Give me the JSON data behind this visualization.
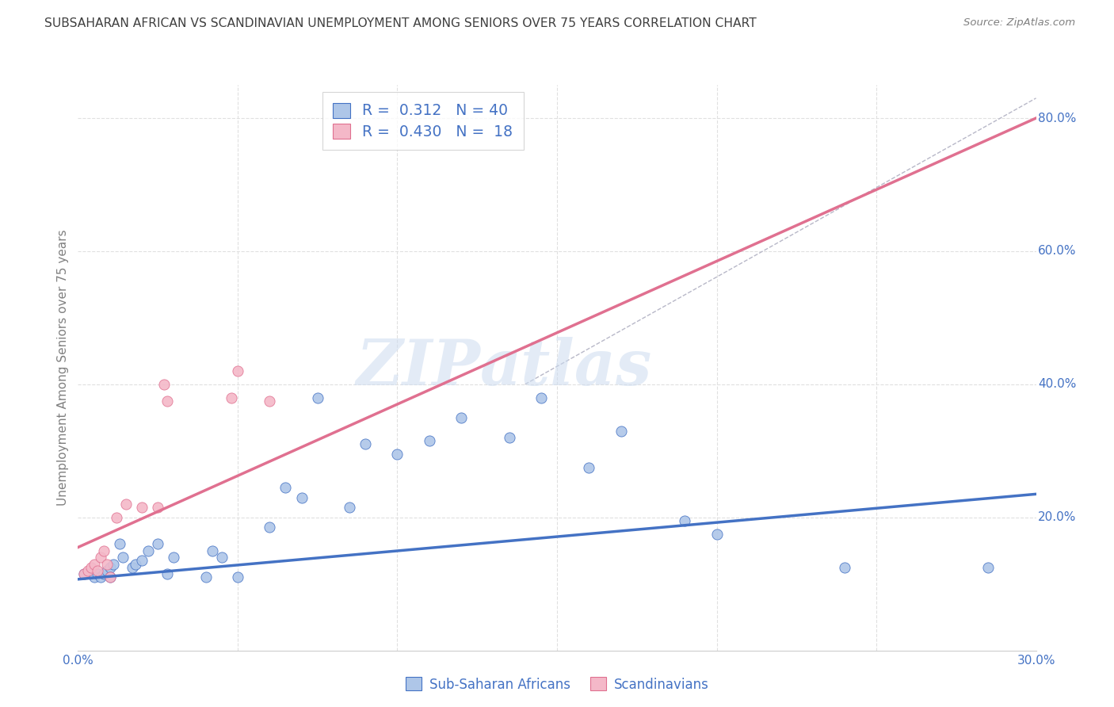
{
  "title": "SUBSAHARAN AFRICAN VS SCANDINAVIAN UNEMPLOYMENT AMONG SENIORS OVER 75 YEARS CORRELATION CHART",
  "source": "Source: ZipAtlas.com",
  "ylabel": "Unemployment Among Seniors over 75 years",
  "xlim": [
    0.0,
    0.3
  ],
  "ylim": [
    0.0,
    0.85
  ],
  "blue_scatter_x": [
    0.002,
    0.004,
    0.005,
    0.006,
    0.007,
    0.008,
    0.009,
    0.01,
    0.01,
    0.011,
    0.013,
    0.014,
    0.017,
    0.018,
    0.02,
    0.022,
    0.025,
    0.028,
    0.03,
    0.04,
    0.042,
    0.045,
    0.05,
    0.06,
    0.065,
    0.07,
    0.075,
    0.085,
    0.09,
    0.1,
    0.11,
    0.12,
    0.135,
    0.145,
    0.16,
    0.17,
    0.19,
    0.2,
    0.24,
    0.285
  ],
  "blue_scatter_y": [
    0.115,
    0.115,
    0.11,
    0.115,
    0.11,
    0.115,
    0.12,
    0.125,
    0.11,
    0.13,
    0.16,
    0.14,
    0.125,
    0.13,
    0.135,
    0.15,
    0.16,
    0.115,
    0.14,
    0.11,
    0.15,
    0.14,
    0.11,
    0.185,
    0.245,
    0.23,
    0.38,
    0.215,
    0.31,
    0.295,
    0.315,
    0.35,
    0.32,
    0.38,
    0.275,
    0.33,
    0.195,
    0.175,
    0.125,
    0.125
  ],
  "pink_scatter_x": [
    0.002,
    0.003,
    0.004,
    0.005,
    0.006,
    0.007,
    0.008,
    0.009,
    0.01,
    0.012,
    0.015,
    0.02,
    0.025,
    0.027,
    0.028,
    0.048,
    0.05,
    0.06
  ],
  "pink_scatter_y": [
    0.115,
    0.12,
    0.125,
    0.13,
    0.12,
    0.14,
    0.15,
    0.13,
    0.11,
    0.2,
    0.22,
    0.215,
    0.215,
    0.4,
    0.375,
    0.38,
    0.42,
    0.375
  ],
  "blue_line_x": [
    0.0,
    0.3
  ],
  "blue_line_y": [
    0.107,
    0.235
  ],
  "pink_line_x": [
    0.0,
    0.3
  ],
  "pink_line_y": [
    0.155,
    0.8
  ],
  "dashed_line_x": [
    0.14,
    0.3
  ],
  "dashed_line_y": [
    0.4,
    0.83
  ],
  "blue_color": "#aec6e8",
  "blue_line_color": "#4472c4",
  "pink_color": "#f4b8c8",
  "pink_line_color": "#e07090",
  "dashed_line_color": "#b8b8c8",
  "scatter_size": 90,
  "legend_R_blue": "0.312",
  "legend_N_blue": "40",
  "legend_R_pink": "0.430",
  "legend_N_pink": "18",
  "legend_label_blue": "Sub-Saharan Africans",
  "legend_label_pink": "Scandinavians",
  "watermark_zip": "ZIP",
  "watermark_atlas": "atlаs",
  "background_color": "#ffffff",
  "title_color": "#404040",
  "axis_label_color": "#808080",
  "tick_color": "#4472c4",
  "source_color": "#808080",
  "grid_color": "#e0e0e0"
}
